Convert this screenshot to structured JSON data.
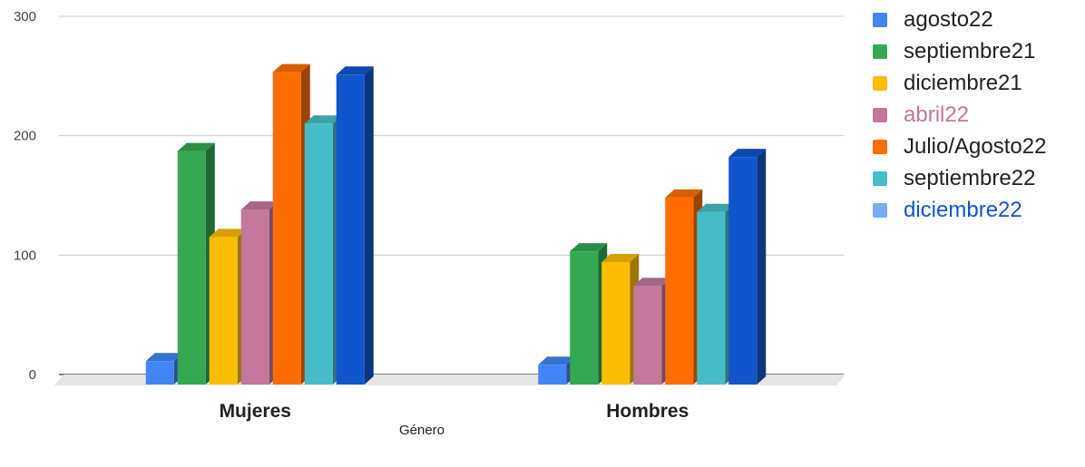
{
  "chart_data": {
    "type": "bar",
    "categories": [
      "Mujeres",
      "Hombres"
    ],
    "xlabel": "Género",
    "ylabel": "",
    "ylim": [
      0,
      300
    ],
    "yticks": [
      0,
      100,
      200,
      300
    ],
    "grid": true,
    "legend_position": "right",
    "series": [
      {
        "name": "agosto22",
        "color": "#4285f4",
        "values": [
          18,
          15
        ]
      },
      {
        "name": "septiembre21",
        "color": "#34a853",
        "values": [
          194,
          110
        ]
      },
      {
        "name": "diciembre21",
        "color": "#fbbc04",
        "values": [
          122,
          101
        ]
      },
      {
        "name": "abril22",
        "color": "#c2779b",
        "label_color": "#c2779b",
        "values": [
          145,
          81
        ]
      },
      {
        "name": "Julio/Agosto22",
        "color": "#ff6d01",
        "values": [
          260,
          155
        ]
      },
      {
        "name": "septiembre22",
        "color": "#46bdc6",
        "values": [
          217,
          143
        ]
      },
      {
        "name": "diciembre22",
        "color": "#7baaf7",
        "label_color": "#1155cc",
        "bar_color": "#1155cc",
        "values": [
          258,
          189
        ]
      }
    ]
  }
}
